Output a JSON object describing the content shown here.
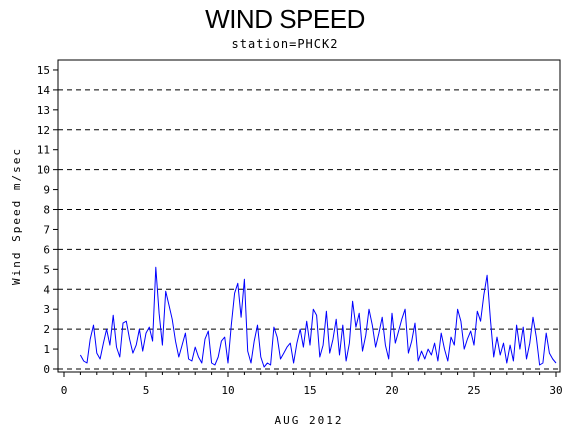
{
  "chart_data": {
    "type": "line",
    "title": "WIND SPEED",
    "subtitle": "station=PHCK2",
    "xlabel": "AUG 2012",
    "ylabel": "Wind Speed m/sec",
    "xlim": [
      0,
      30
    ],
    "ylim": [
      0,
      15.5
    ],
    "x_ticks": [
      0,
      5,
      10,
      15,
      20,
      25,
      30
    ],
    "y_ticks": [
      0,
      1,
      2,
      3,
      4,
      5,
      6,
      7,
      8,
      9,
      10,
      11,
      12,
      13,
      14,
      15
    ],
    "dashed_gridlines_y": [
      0,
      2,
      4,
      6,
      8,
      10,
      12,
      14
    ],
    "line_color": "#0000ff",
    "series": [
      {
        "x": [
          1.0,
          1.2,
          1.4,
          1.6,
          1.8,
          2.0,
          2.2,
          2.4,
          2.6,
          2.8,
          3.0,
          3.2,
          3.4,
          3.6,
          3.8,
          4.0,
          4.2,
          4.4,
          4.6,
          4.8,
          5.0,
          5.2,
          5.4,
          5.6,
          5.8,
          6.0,
          6.2,
          6.4,
          6.6,
          6.8,
          7.0,
          7.2,
          7.4,
          7.6,
          7.8,
          8.0,
          8.2,
          8.4,
          8.6,
          8.8,
          9.0,
          9.2,
          9.4,
          9.6,
          9.8,
          10.0,
          10.2,
          10.4,
          10.6,
          10.8,
          11.0,
          11.2,
          11.4,
          11.6,
          11.8,
          12.0,
          12.2,
          12.4,
          12.6,
          12.8,
          13.0,
          13.2,
          13.4,
          13.6,
          13.8,
          14.0,
          14.2,
          14.4,
          14.6,
          14.8,
          15.0,
          15.2,
          15.4,
          15.6,
          15.8,
          16.0,
          16.2,
          16.4,
          16.6,
          16.8,
          17.0,
          17.2,
          17.4,
          17.6,
          17.8,
          18.0,
          18.2,
          18.4,
          18.6,
          18.8,
          19.0,
          19.2,
          19.4,
          19.6,
          19.8,
          20.0,
          20.2,
          20.4,
          20.6,
          20.8,
          21.0,
          21.2,
          21.4,
          21.6,
          21.8,
          22.0,
          22.2,
          22.4,
          22.6,
          22.8,
          23.0,
          23.2,
          23.4,
          23.6,
          23.8,
          24.0,
          24.2,
          24.4,
          24.6,
          24.8,
          25.0,
          25.2,
          25.4,
          25.6,
          25.8,
          26.0,
          26.2,
          26.4,
          26.6,
          26.8,
          27.0,
          27.2,
          27.4,
          27.6,
          27.8,
          28.0,
          28.2,
          28.4,
          28.6,
          28.8,
          29.0,
          29.2,
          29.4,
          29.6,
          29.8,
          30.0
        ],
        "y": [
          0.7,
          0.4,
          0.3,
          1.5,
          2.2,
          0.8,
          0.5,
          1.3,
          2.0,
          1.2,
          2.7,
          1.1,
          0.6,
          2.3,
          2.4,
          1.5,
          0.8,
          1.2,
          2.0,
          0.9,
          1.8,
          2.1,
          1.4,
          5.1,
          2.8,
          1.2,
          3.9,
          3.2,
          2.5,
          1.4,
          0.6,
          1.2,
          1.8,
          0.5,
          0.4,
          1.1,
          0.6,
          0.3,
          1.5,
          1.9,
          0.3,
          0.2,
          0.6,
          1.4,
          1.6,
          0.3,
          2.2,
          3.8,
          4.3,
          2.6,
          4.5,
          0.9,
          0.3,
          1.4,
          2.2,
          0.6,
          0.1,
          0.3,
          0.2,
          2.1,
          1.6,
          0.5,
          0.8,
          1.1,
          1.3,
          0.3,
          1.3,
          2.0,
          1.1,
          2.4,
          1.2,
          3.0,
          2.7,
          0.6,
          1.2,
          2.9,
          0.8,
          1.5,
          2.5,
          0.7,
          2.2,
          0.4,
          1.3,
          3.4,
          2.1,
          2.8,
          0.9,
          1.7,
          3.0,
          2.2,
          1.1,
          1.8,
          2.6,
          1.2,
          0.5,
          2.8,
          1.3,
          1.9,
          2.5,
          3.0,
          0.8,
          1.4,
          2.3,
          0.4,
          0.9,
          0.5,
          1.0,
          0.7,
          1.3,
          0.4,
          1.8,
          1.0,
          0.4,
          1.6,
          1.2,
          3.0,
          2.4,
          1.0,
          1.5,
          1.9,
          1.2,
          2.9,
          2.4,
          3.7,
          4.7,
          2.5,
          0.6,
          1.6,
          0.7,
          1.3,
          0.3,
          1.2,
          0.4,
          2.2,
          1.0,
          2.1,
          0.5,
          1.3,
          2.6,
          1.6,
          0.2,
          0.3,
          1.8,
          0.8,
          0.5,
          0.3
        ]
      }
    ]
  }
}
